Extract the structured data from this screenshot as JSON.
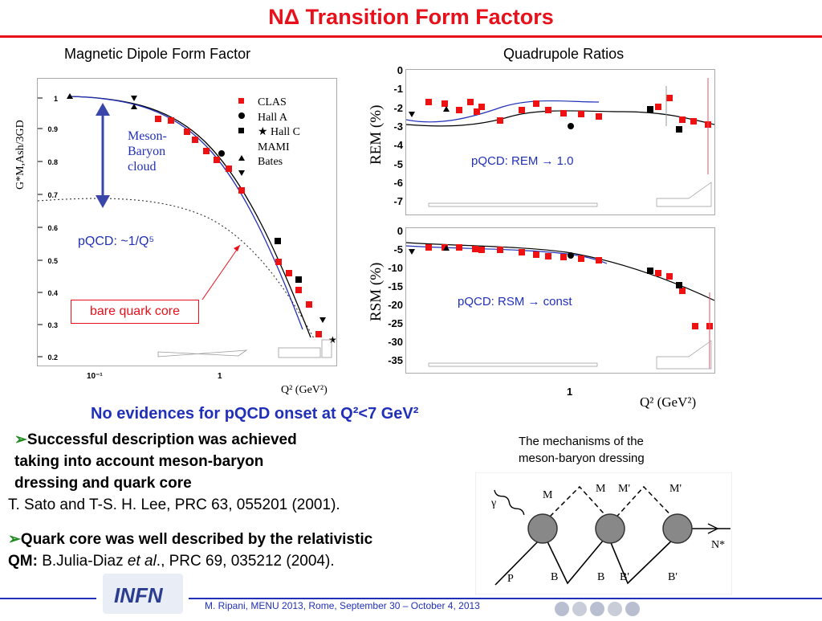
{
  "slide": {
    "title": "NΔ Transition Form Factors",
    "left_chart_heading": "Magnetic Dipole Form Factor",
    "right_chart_heading": "Quadrupole Ratios",
    "conclusion": "No evidences for  pQCD onset at Q²<7 GeV²",
    "bullet1": [
      "Successful description was achieved",
      "taking into account meson-baryon",
      "dressing and quark core"
    ],
    "ref1": "T. Sato and T-S. H. Lee, PRC 63, 055201 (2001).",
    "bullet2_line1": "Quark core was well described by the relativistic",
    "bullet2_line2_prefix": "QM: ",
    "bullet2_line2_authors": "B.Julia-Diaz ",
    "bullet2_line2_etal": "et al",
    "bullet2_line2_rest": "., PRC 69, 035212 (2004).",
    "diagram_caption": [
      "The mechanisms of the",
      "meson-baryon dressing"
    ],
    "logo_text": "INFN",
    "footer": "M. Ripani, MENU 2013, Rome, September 30 – October 4, 2013",
    "bullet_glyph": "➢"
  },
  "left_plot": {
    "ylabel": "G*M,Ash/3GD",
    "xlabel": "Q² (GeV²)",
    "y_ticks": [
      "1",
      "0.9",
      "0.8",
      "0.7",
      "0.6",
      "0.5",
      "0.4",
      "0.3",
      "0.2"
    ],
    "x_ticks": [
      "10⁻¹",
      "1"
    ],
    "legend": [
      {
        "marker": "square-red",
        "label": "CLAS"
      },
      {
        "marker": "circle-black",
        "label": "Hall A"
      },
      {
        "marker": "square-black",
        "label": "★ Hall C"
      },
      {
        "marker": "triangle-up",
        "label": "MAMI"
      },
      {
        "marker": "triangle-down",
        "label": "Bates"
      }
    ],
    "annotation_cloud": [
      "Meson-",
      "Baryon",
      "cloud"
    ],
    "annotation_pqcd": "pQCD: ~1/Q⁵",
    "annotation_core": "bare quark core"
  },
  "rem_plot": {
    "ylabel": "REM (%)",
    "y_ticks": [
      "0",
      "-1",
      "-2",
      "-3",
      "-4",
      "-5",
      "-6",
      "-7"
    ],
    "annotation": "pQCD:  REM → 1.0"
  },
  "rsm_plot": {
    "ylabel": "RSM (%)",
    "y_ticks": [
      "0",
      "-5",
      "-10",
      "-15",
      "-20",
      "-25",
      "-30",
      "-35"
    ],
    "x_tick": "1",
    "xlabel": "Q² (GeV²)",
    "annotation": "pQCD:  RSM → const"
  },
  "diagram": {
    "labels": [
      "γ",
      "M",
      "M",
      "M'",
      "M'",
      "N*",
      "P",
      "B",
      "B",
      "B'",
      "B'"
    ]
  },
  "colors": {
    "accent": "#e8101a",
    "blue": "#2130b8",
    "data_red": "#ee1111"
  }
}
